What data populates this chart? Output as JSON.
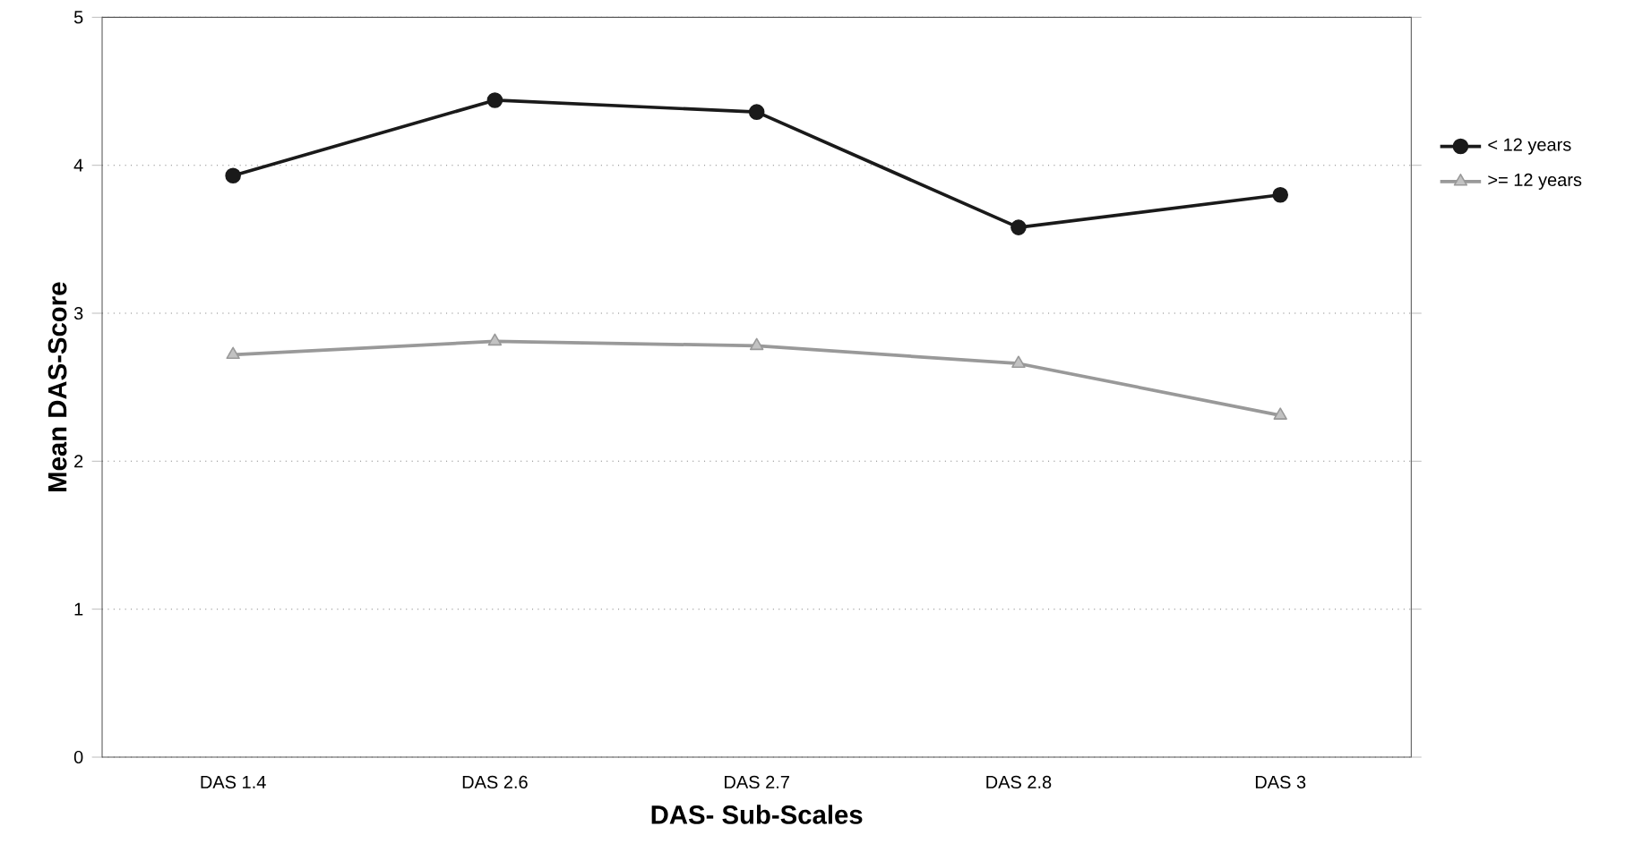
{
  "chart_data": {
    "type": "line",
    "xlabel": "DAS- Sub-Scales",
    "ylabel": "Mean DAS-Score",
    "categories": [
      "DAS 1.4",
      "DAS 2.6",
      "DAS 2.7",
      "DAS 2.8",
      "DAS 3"
    ],
    "series": [
      {
        "name": "< 12 years",
        "color": "#1a1a1a",
        "marker": "circle",
        "values": [
          3.93,
          4.44,
          4.36,
          3.58,
          3.8
        ]
      },
      {
        "name": ">= 12 years",
        "color": "#999999",
        "marker": "triangle",
        "values": [
          2.72,
          2.81,
          2.78,
          2.66,
          2.31
        ]
      }
    ],
    "ylim": [
      0,
      5
    ],
    "yticks": [
      0,
      1,
      2,
      3,
      4,
      5
    ],
    "grid": "y",
    "legend": "right",
    "line_style": "solid"
  }
}
